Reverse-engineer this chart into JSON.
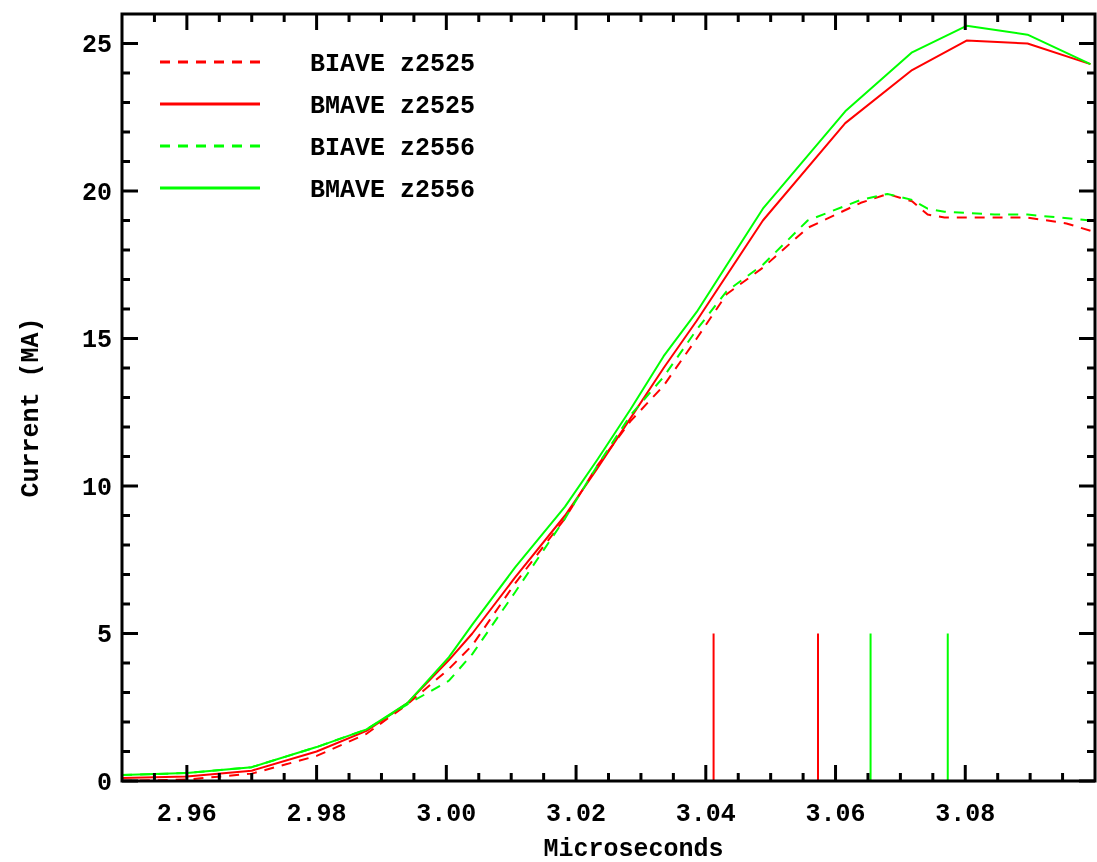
{
  "chart_data": {
    "type": "line",
    "xlabel": "Microseconds",
    "ylabel": "Current (MA)",
    "xlim": [
      2.95,
      3.1
    ],
    "ylim": [
      0,
      26
    ],
    "xticks": [
      {
        "value": 2.955,
        "label": null
      },
      2.96,
      {
        "value": 2.965,
        "label": null
      },
      {
        "value": 2.97,
        "label": null
      },
      {
        "value": 2.975,
        "label": null
      },
      2.98,
      {
        "value": 2.985,
        "label": null
      },
      {
        "value": 2.99,
        "label": null
      },
      {
        "value": 2.995,
        "label": null
      },
      "3.00",
      {
        "value": 3.005,
        "label": null
      },
      {
        "value": 3.01,
        "label": null
      },
      {
        "value": 3.015,
        "label": null
      },
      3.02,
      {
        "value": 3.025,
        "label": null
      },
      {
        "value": 3.03,
        "label": null
      },
      {
        "value": 3.035,
        "label": null
      },
      3.04,
      {
        "value": 3.045,
        "label": null
      },
      {
        "value": 3.05,
        "label": null
      },
      {
        "value": 3.055,
        "label": null
      },
      3.06,
      {
        "value": 3.065,
        "label": null
      },
      {
        "value": 3.07,
        "label": null
      },
      {
        "value": 3.075,
        "label": null
      },
      3.08,
      {
        "value": 3.085,
        "label": null
      },
      {
        "value": 3.09,
        "label": null
      },
      {
        "value": 3.095,
        "label": null
      }
    ],
    "yticks": [
      0,
      {
        "value": 1,
        "label": null
      },
      {
        "value": 2,
        "label": null
      },
      {
        "value": 3,
        "label": null
      },
      {
        "value": 4,
        "label": null
      },
      5,
      {
        "value": 6,
        "label": null
      },
      {
        "value": 7,
        "label": null
      },
      {
        "value": 8,
        "label": null
      },
      {
        "value": 9,
        "label": null
      },
      10,
      {
        "value": 11,
        "label": null
      },
      {
        "value": 12,
        "label": null
      },
      {
        "value": 13,
        "label": null
      },
      {
        "value": 14,
        "label": null
      },
      15,
      {
        "value": 16,
        "label": null
      },
      {
        "value": 17,
        "label": null
      },
      {
        "value": 18,
        "label": null
      },
      {
        "value": 19,
        "label": null
      },
      20,
      {
        "value": 21,
        "label": null
      },
      {
        "value": 22,
        "label": null
      },
      {
        "value": 23,
        "label": null
      },
      {
        "value": 24,
        "label": null
      },
      25
    ],
    "grid": false,
    "legend": "top left",
    "marker": "none",
    "series": [
      {
        "name": "BIAVE z2525",
        "color": "#ff0000",
        "line_style": "dashed",
        "x": [
          2.95,
          2.96,
          2.97,
          2.98,
          2.9877,
          2.994,
          3.0004,
          3.004,
          3.0106,
          3.0183,
          3.0233,
          3.0284,
          3.0335,
          3.0386,
          3.0432,
          3.0488,
          3.0557,
          3.0639,
          3.068,
          3.0718,
          3.0742,
          3.0768,
          3.0845,
          3.0896,
          3.0956,
          3.0993
        ],
        "values": [
          0.0,
          0.05,
          0.25,
          0.85,
          1.6,
          2.6,
          3.8,
          4.6,
          6.7,
          8.9,
          10.7,
          12.2,
          13.4,
          15.0,
          16.5,
          17.4,
          18.75,
          19.6,
          19.9,
          19.65,
          19.2,
          19.1,
          19.1,
          19.1,
          18.9,
          18.65
        ]
      },
      {
        "name": "BMAVE z2525",
        "color": "#ff0000",
        "line_style": "solid",
        "x": [
          2.95,
          2.96,
          2.97,
          2.98,
          2.9877,
          2.994,
          3.0004,
          3.004,
          3.0106,
          3.0183,
          3.0233,
          3.0284,
          3.0335,
          3.0386,
          3.0488,
          3.0615,
          3.0718,
          3.0802,
          3.0896,
          3.0993
        ],
        "values": [
          0.1,
          0.15,
          0.35,
          1.0,
          1.7,
          2.64,
          4.1,
          5.0,
          6.9,
          9.0,
          10.6,
          12.3,
          14.0,
          15.6,
          19.0,
          22.3,
          24.1,
          25.1,
          25.0,
          24.3
        ]
      },
      {
        "name": "BIAVE z2556",
        "color": "#00ff00",
        "line_style": "dashed",
        "x": [
          2.95,
          2.96,
          2.97,
          2.98,
          2.9877,
          2.994,
          3.0004,
          3.004,
          3.0106,
          3.0183,
          3.0233,
          3.0284,
          3.0335,
          3.0386,
          3.0432,
          3.0488,
          3.0557,
          3.0639,
          3.068,
          3.0718,
          3.0742,
          3.0768,
          3.0845,
          3.0896,
          3.0993
        ],
        "values": [
          0.2,
          0.27,
          0.47,
          1.15,
          1.75,
          2.6,
          3.4,
          4.3,
          6.4,
          8.9,
          10.7,
          12.4,
          13.7,
          15.3,
          16.6,
          17.5,
          19.0,
          19.7,
          19.9,
          19.7,
          19.4,
          19.3,
          19.2,
          19.2,
          19.0
        ]
      },
      {
        "name": "BMAVE z2556",
        "color": "#00ff00",
        "line_style": "solid",
        "x": [
          2.95,
          2.96,
          2.97,
          2.98,
          2.9877,
          2.994,
          3.0004,
          3.004,
          3.0106,
          3.0183,
          3.0233,
          3.0284,
          3.0335,
          3.0386,
          3.0488,
          3.0615,
          3.0718,
          3.0802,
          3.0896,
          3.0993
        ],
        "values": [
          0.2,
          0.27,
          0.47,
          1.15,
          1.75,
          2.64,
          4.2,
          5.3,
          7.24,
          9.3,
          10.9,
          12.6,
          14.4,
          15.9,
          19.4,
          22.7,
          24.7,
          25.6,
          25.3,
          24.3
        ]
      },
      {
        "color": "#ff0000",
        "line_style": "solid",
        "x": [
          3.0412,
          3.0412
        ],
        "values": [
          0,
          5
        ]
      },
      {
        "color": "#ff0000",
        "line_style": "solid",
        "x": [
          3.0573,
          3.0573
        ],
        "values": [
          0,
          5
        ]
      },
      {
        "color": "#00ff00",
        "line_style": "solid",
        "x": [
          3.0654,
          3.0654
        ],
        "values": [
          0,
          5
        ]
      },
      {
        "color": "#00ff00",
        "line_style": "solid",
        "x": [
          3.0773,
          3.0773
        ],
        "values": [
          0,
          5
        ]
      }
    ]
  }
}
